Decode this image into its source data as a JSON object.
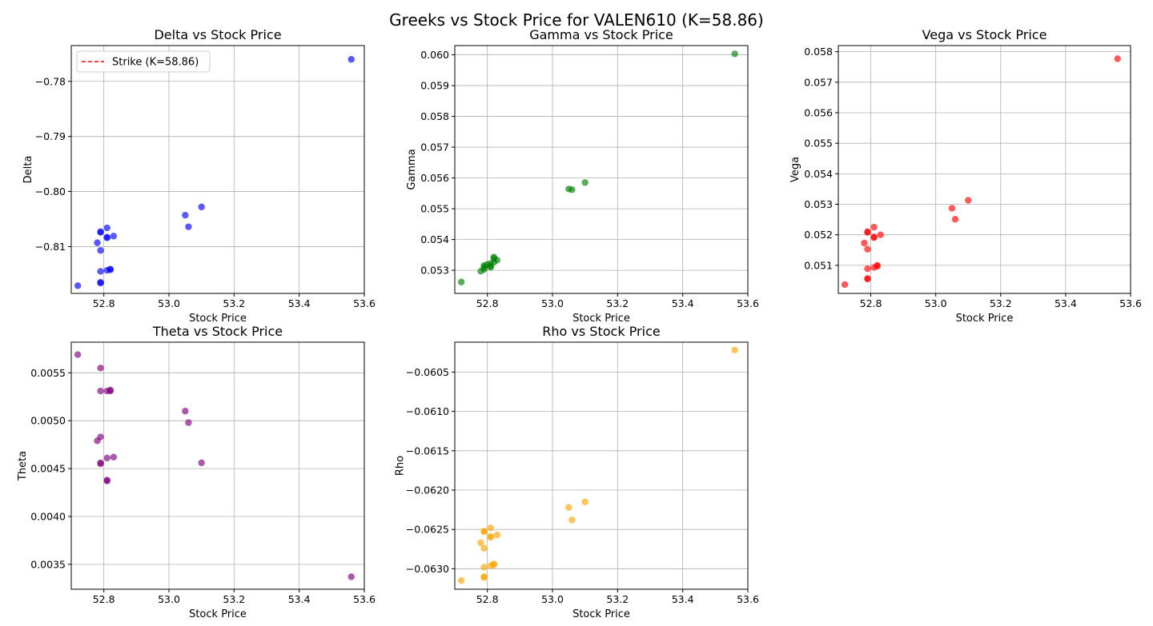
{
  "title": "Greeks vs Stock Price for VALEN610 (K=58.86)",
  "colors": {
    "delta": "#0000ff",
    "gamma": "#008000",
    "vega": "#ff0000",
    "theta": "#800080",
    "rho": "#ffa500",
    "strike": "#ff0000",
    "grid": "#b0b0b0"
  },
  "chart_data": [
    {
      "type": "scatter",
      "title": "Delta vs Stock Price",
      "xlabel": "Stock Price",
      "ylabel": "Delta",
      "color_key": "delta",
      "xlim": [
        52.7,
        53.6
      ],
      "ylim": [
        -0.8185,
        -0.7735
      ],
      "xticks": [
        52.8,
        53.0,
        53.2,
        53.4,
        53.6
      ],
      "xtick_labels": [
        "52.8",
        "53.0",
        "53.2",
        "53.4",
        "53.6"
      ],
      "yticks": [
        -0.78,
        -0.79,
        -0.8,
        -0.81
      ],
      "ytick_labels": [
        "−0.78",
        "−0.79",
        "−0.80",
        "−0.81"
      ],
      "legend": {
        "label": "Strike (K=58.86)",
        "position": "upper-left"
      },
      "grid": true,
      "points": [
        {
          "x": 52.72,
          "y": -0.8171
        },
        {
          "x": 52.78,
          "y": -0.8093
        },
        {
          "x": 52.79,
          "y": -0.8074
        },
        {
          "x": 52.79,
          "y": -0.8073
        },
        {
          "x": 52.79,
          "y": -0.8107
        },
        {
          "x": 52.79,
          "y": -0.8145
        },
        {
          "x": 52.79,
          "y": -0.8165
        },
        {
          "x": 52.79,
          "y": -0.8166
        },
        {
          "x": 52.81,
          "y": -0.8066
        },
        {
          "x": 52.81,
          "y": -0.8083
        },
        {
          "x": 52.81,
          "y": -0.8084
        },
        {
          "x": 52.81,
          "y": -0.8143
        },
        {
          "x": 52.82,
          "y": -0.8142
        },
        {
          "x": 52.82,
          "y": -0.8141
        },
        {
          "x": 52.83,
          "y": -0.8081
        },
        {
          "x": 53.05,
          "y": -0.8043
        },
        {
          "x": 53.06,
          "y": -0.8064
        },
        {
          "x": 53.1,
          "y": -0.8028
        },
        {
          "x": 53.56,
          "y": -0.776
        }
      ]
    },
    {
      "type": "scatter",
      "title": "Gamma vs Stock Price",
      "xlabel": "Stock Price",
      "ylabel": "Gamma",
      "color_key": "gamma",
      "xlim": [
        52.7,
        53.6
      ],
      "ylim": [
        0.05225,
        0.0603
      ],
      "xticks": [
        52.8,
        53.0,
        53.2,
        53.4,
        53.6
      ],
      "xtick_labels": [
        "52.8",
        "53.0",
        "53.2",
        "53.4",
        "53.6"
      ],
      "yticks": [
        0.053,
        0.054,
        0.055,
        0.056,
        0.057,
        0.058,
        0.059,
        0.06
      ],
      "ytick_labels": [
        "0.053",
        "0.054",
        "0.055",
        "0.056",
        "0.057",
        "0.058",
        "0.059",
        "0.060"
      ],
      "grid": true,
      "points": [
        {
          "x": 52.72,
          "y": 0.05262
        },
        {
          "x": 52.78,
          "y": 0.05297
        },
        {
          "x": 52.79,
          "y": 0.05303
        },
        {
          "x": 52.79,
          "y": 0.0531
        },
        {
          "x": 52.79,
          "y": 0.05316
        },
        {
          "x": 52.8,
          "y": 0.05319
        },
        {
          "x": 52.81,
          "y": 0.0531
        },
        {
          "x": 52.81,
          "y": 0.05313
        },
        {
          "x": 52.81,
          "y": 0.05322
        },
        {
          "x": 52.82,
          "y": 0.05326
        },
        {
          "x": 52.82,
          "y": 0.05339
        },
        {
          "x": 52.82,
          "y": 0.05343
        },
        {
          "x": 52.83,
          "y": 0.05333
        },
        {
          "x": 53.05,
          "y": 0.05564
        },
        {
          "x": 53.06,
          "y": 0.05562
        },
        {
          "x": 53.1,
          "y": 0.05585
        },
        {
          "x": 53.56,
          "y": 0.06003
        }
      ]
    },
    {
      "type": "scatter",
      "title": "Vega vs Stock Price",
      "xlabel": "Stock Price",
      "ylabel": "Vega",
      "color_key": "vega",
      "xlim": [
        52.7,
        53.6
      ],
      "ylim": [
        0.05008,
        0.0582
      ],
      "xticks": [
        52.8,
        53.0,
        53.2,
        53.4,
        53.6
      ],
      "xtick_labels": [
        "52.8",
        "53.0",
        "53.2",
        "53.4",
        "53.6"
      ],
      "yticks": [
        0.051,
        0.052,
        0.053,
        0.054,
        0.055,
        0.056,
        0.057,
        0.058
      ],
      "ytick_labels": [
        "0.051",
        "0.052",
        "0.053",
        "0.054",
        "0.055",
        "0.056",
        "0.057",
        "0.058"
      ],
      "grid": true,
      "points": [
        {
          "x": 52.72,
          "y": 0.05037
        },
        {
          "x": 52.78,
          "y": 0.05173
        },
        {
          "x": 52.79,
          "y": 0.05208
        },
        {
          "x": 52.79,
          "y": 0.0521
        },
        {
          "x": 52.79,
          "y": 0.05153
        },
        {
          "x": 52.79,
          "y": 0.05089
        },
        {
          "x": 52.79,
          "y": 0.05057
        },
        {
          "x": 52.79,
          "y": 0.05055
        },
        {
          "x": 52.81,
          "y": 0.05225
        },
        {
          "x": 52.81,
          "y": 0.05191
        },
        {
          "x": 52.81,
          "y": 0.05193
        },
        {
          "x": 52.81,
          "y": 0.05093
        },
        {
          "x": 52.82,
          "y": 0.05097
        },
        {
          "x": 52.82,
          "y": 0.051
        },
        {
          "x": 52.83,
          "y": 0.052
        },
        {
          "x": 53.05,
          "y": 0.05287
        },
        {
          "x": 53.06,
          "y": 0.05251
        },
        {
          "x": 53.1,
          "y": 0.05313
        },
        {
          "x": 53.56,
          "y": 0.05777
        }
      ]
    },
    {
      "type": "scatter",
      "title": "Theta vs Stock Price",
      "xlabel": "Stock Price",
      "ylabel": "Theta",
      "color_key": "theta",
      "xlim": [
        52.7,
        53.6
      ],
      "ylim": [
        0.00324,
        0.00582
      ],
      "xticks": [
        52.8,
        53.0,
        53.2,
        53.4,
        53.6
      ],
      "xtick_labels": [
        "52.8",
        "53.0",
        "53.2",
        "53.4",
        "53.6"
      ],
      "yticks": [
        0.0035,
        0.004,
        0.0045,
        0.005,
        0.0055
      ],
      "ytick_labels": [
        "0.0035",
        "0.0040",
        "0.0045",
        "0.0050",
        "0.0055"
      ],
      "grid": true,
      "points": [
        {
          "x": 52.72,
          "y": 0.00569
        },
        {
          "x": 52.78,
          "y": 0.00479
        },
        {
          "x": 52.79,
          "y": 0.00483
        },
        {
          "x": 52.79,
          "y": 0.00531
        },
        {
          "x": 52.79,
          "y": 0.00555
        },
        {
          "x": 52.79,
          "y": 0.00456
        },
        {
          "x": 52.79,
          "y": 0.00455
        },
        {
          "x": 52.81,
          "y": 0.00531
        },
        {
          "x": 52.81,
          "y": 0.00461
        },
        {
          "x": 52.81,
          "y": 0.00437
        },
        {
          "x": 52.81,
          "y": 0.00438
        },
        {
          "x": 52.82,
          "y": 0.00532
        },
        {
          "x": 52.82,
          "y": 0.00531
        },
        {
          "x": 52.83,
          "y": 0.00462
        },
        {
          "x": 53.05,
          "y": 0.0051
        },
        {
          "x": 53.06,
          "y": 0.00498
        },
        {
          "x": 53.1,
          "y": 0.00456
        },
        {
          "x": 53.56,
          "y": 0.00337
        }
      ]
    },
    {
      "type": "scatter",
      "title": "Rho vs Stock Price",
      "xlabel": "Stock Price",
      "ylabel": "Rho",
      "color_key": "rho",
      "xlim": [
        52.7,
        53.6
      ],
      "ylim": [
        -0.06326,
        -0.06012
      ],
      "xticks": [
        52.8,
        53.0,
        53.2,
        53.4,
        53.6
      ],
      "xtick_labels": [
        "52.8",
        "53.0",
        "53.2",
        "53.4",
        "53.6"
      ],
      "yticks": [
        -0.0605,
        -0.061,
        -0.0615,
        -0.062,
        -0.0625,
        -0.063
      ],
      "ytick_labels": [
        "−0.0605",
        "−0.0610",
        "−0.0615",
        "−0.0620",
        "−0.0625",
        "−0.0630"
      ],
      "grid": true,
      "points": [
        {
          "x": 52.72,
          "y": -0.06315
        },
        {
          "x": 52.78,
          "y": -0.06267
        },
        {
          "x": 52.79,
          "y": -0.06274
        },
        {
          "x": 52.79,
          "y": -0.06253
        },
        {
          "x": 52.79,
          "y": -0.06252
        },
        {
          "x": 52.79,
          "y": -0.06298
        },
        {
          "x": 52.79,
          "y": -0.06311
        },
        {
          "x": 52.79,
          "y": -0.0631
        },
        {
          "x": 52.81,
          "y": -0.06248
        },
        {
          "x": 52.81,
          "y": -0.06259
        },
        {
          "x": 52.81,
          "y": -0.0626
        },
        {
          "x": 52.81,
          "y": -0.06296
        },
        {
          "x": 52.82,
          "y": -0.06295
        },
        {
          "x": 52.82,
          "y": -0.06294
        },
        {
          "x": 52.83,
          "y": -0.06257
        },
        {
          "x": 53.05,
          "y": -0.06222
        },
        {
          "x": 53.06,
          "y": -0.06238
        },
        {
          "x": 53.1,
          "y": -0.06215
        },
        {
          "x": 53.56,
          "y": -0.06022
        }
      ]
    }
  ]
}
